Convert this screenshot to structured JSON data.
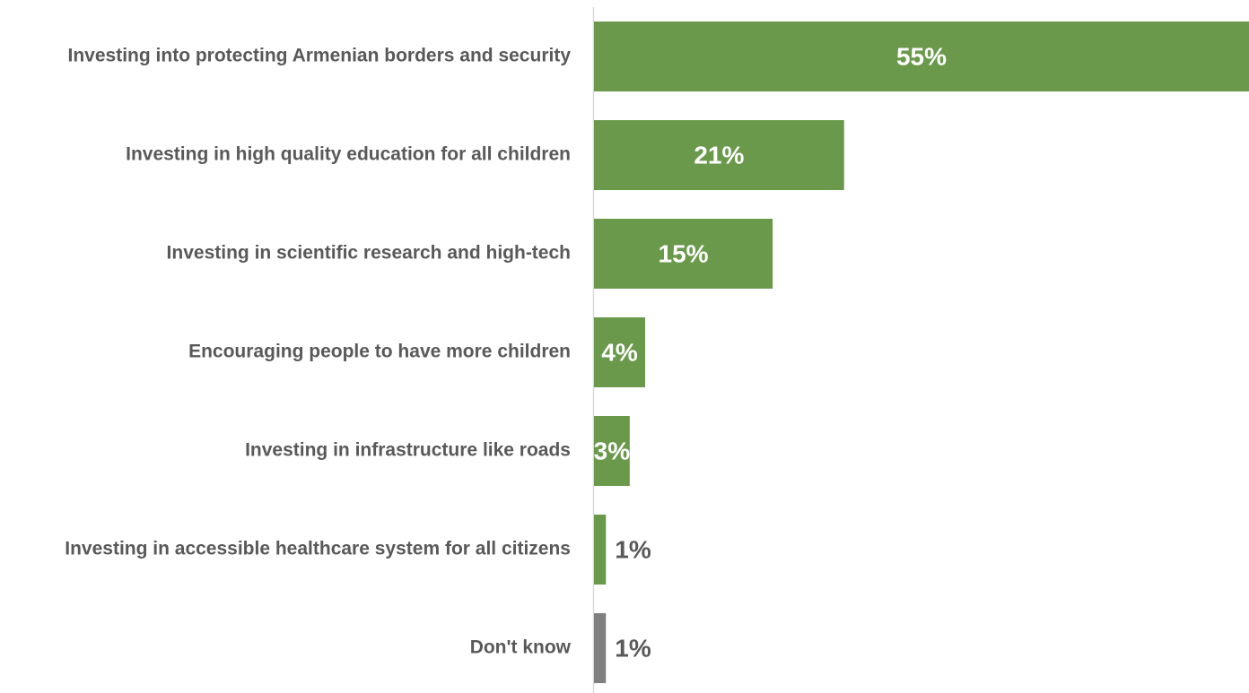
{
  "chart_data": {
    "type": "bar",
    "orientation": "horizontal",
    "categories": [
      "Investing into protecting Armenian borders and security",
      "Investing in high quality education for all children",
      "Investing in scientific research and high-tech",
      "Encouraging people to have more children",
      "Investing in infrastructure like roads",
      "Investing in accessible healthcare system for all citizens",
      "Don't know"
    ],
    "values": [
      55,
      21,
      15,
      4,
      3,
      1,
      1
    ],
    "value_labels": [
      "55%",
      "21%",
      "15%",
      "4%",
      "3%",
      "1%",
      "1%"
    ],
    "bar_colors": [
      "#6a994b",
      "#6a994b",
      "#6a994b",
      "#6a994b",
      "#6a994b",
      "#6a994b",
      "#7f7f7f"
    ],
    "label_colors": [
      "#ffffff",
      "#ffffff",
      "#ffffff",
      "#ffffff",
      "#ffffff",
      "#595959",
      "#595959"
    ],
    "xlim": [
      0,
      55
    ],
    "grid": false,
    "legend": "none",
    "title": "",
    "xlabel": "",
    "ylabel": ""
  }
}
